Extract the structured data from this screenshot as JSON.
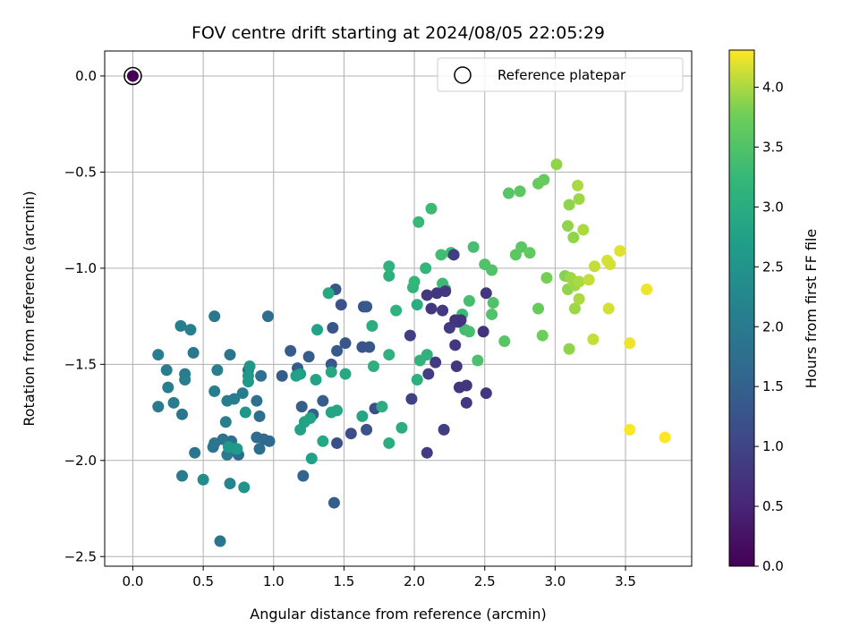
{
  "chart_data": {
    "type": "scatter",
    "title": "FOV centre drift starting at 2024/08/05 22:05:29",
    "xlabel": "Angular distance from reference (arcmin)",
    "ylabel": "Rotation from reference (arcmin)",
    "xlim": [
      -0.2,
      3.97
    ],
    "ylim": [
      -2.55,
      0.13
    ],
    "xticks": [
      0.0,
      0.5,
      1.0,
      1.5,
      2.0,
      2.5,
      3.0,
      3.5
    ],
    "xtick_labels": [
      "0.0",
      "0.5",
      "1.0",
      "1.5",
      "2.0",
      "2.5",
      "3.0",
      "3.5"
    ],
    "yticks": [
      0.0,
      -0.5,
      -1.0,
      -1.5,
      -2.0,
      -2.5
    ],
    "ytick_labels": [
      "0.0",
      "−0.5",
      "−1.0",
      "−1.5",
      "−2.0",
      "−2.5"
    ],
    "grid": true,
    "colormap": "viridis",
    "colorbar": {
      "label": "Hours from first FF file",
      "range": [
        0.0,
        4.31
      ],
      "ticks": [
        0.0,
        0.5,
        1.0,
        1.5,
        2.0,
        2.5,
        3.0,
        3.5,
        4.0
      ],
      "tick_labels": [
        "0.0",
        "0.5",
        "1.0",
        "1.5",
        "2.0",
        "2.5",
        "3.0",
        "3.5",
        "4.0"
      ]
    },
    "legend": {
      "placement": "top-right",
      "entries": [
        {
          "label": "Reference platepar",
          "marker": "open-circle"
        }
      ]
    },
    "reference_point": {
      "x": 0.0,
      "y": 0.0,
      "c": 0.0
    },
    "points": [
      {
        "x": 1.48,
        "y": -1.19,
        "c": 1.25
      },
      {
        "x": 1.42,
        "y": -1.31,
        "c": 1.3
      },
      {
        "x": 1.45,
        "y": -1.43,
        "c": 1.35
      },
      {
        "x": 1.51,
        "y": -1.39,
        "c": 1.3
      },
      {
        "x": 1.64,
        "y": -1.2,
        "c": 1.3
      },
      {
        "x": 1.63,
        "y": -1.41,
        "c": 1.25
      },
      {
        "x": 1.68,
        "y": -1.41,
        "c": 1.3
      },
      {
        "x": 1.66,
        "y": -1.2,
        "c": 1.35
      },
      {
        "x": 1.44,
        "y": -1.11,
        "c": 1.3
      },
      {
        "x": 1.41,
        "y": -1.5,
        "c": 1.35
      },
      {
        "x": 1.12,
        "y": -1.43,
        "c": 1.4
      },
      {
        "x": 1.17,
        "y": -1.52,
        "c": 1.4
      },
      {
        "x": 1.06,
        "y": -1.56,
        "c": 1.4
      },
      {
        "x": 1.28,
        "y": -1.76,
        "c": 1.5
      },
      {
        "x": 1.25,
        "y": -1.46,
        "c": 1.4
      },
      {
        "x": 1.2,
        "y": -1.72,
        "c": 1.45
      },
      {
        "x": 1.35,
        "y": -1.69,
        "c": 1.45
      },
      {
        "x": 1.21,
        "y": -2.08,
        "c": 1.55
      },
      {
        "x": 1.43,
        "y": -2.22,
        "c": 1.45
      },
      {
        "x": 1.45,
        "y": -1.91,
        "c": 1.2
      },
      {
        "x": 1.55,
        "y": -1.86,
        "c": 1.15
      },
      {
        "x": 1.66,
        "y": -1.84,
        "c": 1.25
      },
      {
        "x": 1.72,
        "y": -1.73,
        "c": 1.2
      },
      {
        "x": 0.96,
        "y": -1.25,
        "c": 1.75
      },
      {
        "x": 0.82,
        "y": -1.53,
        "c": 1.75
      },
      {
        "x": 0.91,
        "y": -1.56,
        "c": 1.8
      },
      {
        "x": 0.88,
        "y": -1.69,
        "c": 1.8
      },
      {
        "x": 0.9,
        "y": -1.77,
        "c": 1.75
      },
      {
        "x": 0.93,
        "y": -1.89,
        "c": 1.65
      },
      {
        "x": 0.97,
        "y": -1.9,
        "c": 1.65
      },
      {
        "x": 0.9,
        "y": -1.94,
        "c": 1.75
      },
      {
        "x": 0.88,
        "y": -1.88,
        "c": 1.7
      },
      {
        "x": 0.75,
        "y": -1.97,
        "c": 1.7
      },
      {
        "x": 0.7,
        "y": -1.9,
        "c": 1.8
      },
      {
        "x": 0.64,
        "y": -1.89,
        "c": 1.85
      },
      {
        "x": 0.57,
        "y": -1.93,
        "c": 1.9
      },
      {
        "x": 0.58,
        "y": -1.91,
        "c": 1.9
      },
      {
        "x": 0.67,
        "y": -1.97,
        "c": 2.0
      },
      {
        "x": 0.69,
        "y": -1.45,
        "c": 1.9
      },
      {
        "x": 0.78,
        "y": -1.65,
        "c": 2.0
      },
      {
        "x": 0.67,
        "y": -1.69,
        "c": 2.05
      },
      {
        "x": 0.72,
        "y": -1.68,
        "c": 2.05
      },
      {
        "x": 0.66,
        "y": -1.8,
        "c": 2.1
      },
      {
        "x": 0.58,
        "y": -1.64,
        "c": 2.1
      },
      {
        "x": 0.6,
        "y": -1.53,
        "c": 2.1
      },
      {
        "x": 0.58,
        "y": -1.25,
        "c": 1.95
      },
      {
        "x": 0.34,
        "y": -1.3,
        "c": 2.05
      },
      {
        "x": 0.41,
        "y": -1.32,
        "c": 2.1
      },
      {
        "x": 0.43,
        "y": -1.44,
        "c": 1.95
      },
      {
        "x": 0.18,
        "y": -1.45,
        "c": 2.05
      },
      {
        "x": 0.24,
        "y": -1.53,
        "c": 2.0
      },
      {
        "x": 0.37,
        "y": -1.55,
        "c": 2.0
      },
      {
        "x": 0.37,
        "y": -1.58,
        "c": 2.05
      },
      {
        "x": 0.25,
        "y": -1.62,
        "c": 2.05
      },
      {
        "x": 0.29,
        "y": -1.7,
        "c": 2.05
      },
      {
        "x": 0.18,
        "y": -1.72,
        "c": 2.0
      },
      {
        "x": 0.35,
        "y": -1.76,
        "c": 1.95
      },
      {
        "x": 0.44,
        "y": -1.96,
        "c": 1.9
      },
      {
        "x": 0.35,
        "y": -2.08,
        "c": 2.0
      },
      {
        "x": 0.5,
        "y": -2.1,
        "c": 2.35
      },
      {
        "x": 0.69,
        "y": -2.12,
        "c": 2.2
      },
      {
        "x": 0.79,
        "y": -2.14,
        "c": 2.5
      },
      {
        "x": 0.62,
        "y": -2.42,
        "c": 1.9
      },
      {
        "x": 0.8,
        "y": -1.75,
        "c": 2.55
      },
      {
        "x": 0.82,
        "y": -1.56,
        "c": 2.55
      },
      {
        "x": 0.82,
        "y": -1.59,
        "c": 2.6
      },
      {
        "x": 0.83,
        "y": -1.51,
        "c": 2.55
      },
      {
        "x": 0.68,
        "y": -1.93,
        "c": 2.6
      },
      {
        "x": 0.74,
        "y": -1.94,
        "c": 2.6
      },
      {
        "x": 1.19,
        "y": -1.55,
        "c": 2.7
      },
      {
        "x": 1.16,
        "y": -1.56,
        "c": 2.75
      },
      {
        "x": 1.19,
        "y": -1.84,
        "c": 2.8
      },
      {
        "x": 1.22,
        "y": -1.8,
        "c": 2.8
      },
      {
        "x": 1.26,
        "y": -1.78,
        "c": 2.8
      },
      {
        "x": 1.27,
        "y": -1.99,
        "c": 2.75
      },
      {
        "x": 1.35,
        "y": -1.9,
        "c": 2.9
      },
      {
        "x": 1.41,
        "y": -1.75,
        "c": 2.85
      },
      {
        "x": 1.45,
        "y": -1.74,
        "c": 2.85
      },
      {
        "x": 1.3,
        "y": -1.58,
        "c": 2.8
      },
      {
        "x": 1.31,
        "y": -1.32,
        "c": 2.8
      },
      {
        "x": 1.39,
        "y": -1.13,
        "c": 2.9
      },
      {
        "x": 1.41,
        "y": -1.54,
        "c": 2.9
      },
      {
        "x": 1.51,
        "y": -1.55,
        "c": 2.9
      },
      {
        "x": 1.63,
        "y": -1.77,
        "c": 2.85
      },
      {
        "x": 1.77,
        "y": -1.72,
        "c": 3.0
      },
      {
        "x": 1.82,
        "y": -1.91,
        "c": 3.0
      },
      {
        "x": 1.91,
        "y": -1.83,
        "c": 3.0
      },
      {
        "x": 1.71,
        "y": -1.51,
        "c": 3.05
      },
      {
        "x": 1.7,
        "y": -1.3,
        "c": 3.0
      },
      {
        "x": 1.82,
        "y": -1.45,
        "c": 3.1
      },
      {
        "x": 1.87,
        "y": -1.22,
        "c": 3.1
      },
      {
        "x": 1.82,
        "y": -1.04,
        "c": 3.05
      },
      {
        "x": 1.82,
        "y": -0.99,
        "c": 3.1
      },
      {
        "x": 2.02,
        "y": -1.58,
        "c": 3.05
      },
      {
        "x": 2.04,
        "y": -1.48,
        "c": 3.15
      },
      {
        "x": 2.09,
        "y": -1.45,
        "c": 3.1
      },
      {
        "x": 2.02,
        "y": -1.19,
        "c": 3.0
      },
      {
        "x": 1.99,
        "y": -1.1,
        "c": 3.15
      },
      {
        "x": 2.0,
        "y": -1.07,
        "c": 3.2
      },
      {
        "x": 2.08,
        "y": -1.0,
        "c": 3.2
      },
      {
        "x": 2.03,
        "y": -0.76,
        "c": 3.25
      },
      {
        "x": 2.12,
        "y": -0.69,
        "c": 3.3
      },
      {
        "x": 2.19,
        "y": -0.93,
        "c": 3.35
      },
      {
        "x": 2.26,
        "y": -0.92,
        "c": 3.35
      },
      {
        "x": 2.2,
        "y": -1.08,
        "c": 3.3
      },
      {
        "x": 2.22,
        "y": -1.11,
        "c": 3.3
      },
      {
        "x": 2.34,
        "y": -1.24,
        "c": 3.3
      },
      {
        "x": 2.36,
        "y": -1.32,
        "c": 3.35
      },
      {
        "x": 2.39,
        "y": -1.33,
        "c": 3.4
      },
      {
        "x": 2.39,
        "y": -1.17,
        "c": 3.4
      },
      {
        "x": 2.42,
        "y": -0.89,
        "c": 3.4
      },
      {
        "x": 2.5,
        "y": -0.98,
        "c": 3.5
      },
      {
        "x": 2.55,
        "y": -1.01,
        "c": 3.5
      },
      {
        "x": 2.56,
        "y": -1.18,
        "c": 3.5
      },
      {
        "x": 2.55,
        "y": -1.24,
        "c": 3.5
      },
      {
        "x": 2.45,
        "y": -1.48,
        "c": 3.45
      },
      {
        "x": 2.64,
        "y": -1.38,
        "c": 3.55
      },
      {
        "x": 2.67,
        "y": -0.61,
        "c": 3.55
      },
      {
        "x": 2.75,
        "y": -0.6,
        "c": 3.6
      },
      {
        "x": 2.72,
        "y": -0.93,
        "c": 3.6
      },
      {
        "x": 2.76,
        "y": -0.89,
        "c": 3.6
      },
      {
        "x": 2.82,
        "y": -0.92,
        "c": 3.65
      },
      {
        "x": 2.88,
        "y": -0.56,
        "c": 3.7
      },
      {
        "x": 2.92,
        "y": -0.54,
        "c": 3.7
      },
      {
        "x": 2.88,
        "y": -1.21,
        "c": 3.7
      },
      {
        "x": 2.91,
        "y": -1.35,
        "c": 3.75
      },
      {
        "x": 2.94,
        "y": -1.05,
        "c": 3.8
      },
      {
        "x": 3.01,
        "y": -0.46,
        "c": 3.9
      },
      {
        "x": 3.1,
        "y": -0.67,
        "c": 3.9
      },
      {
        "x": 3.17,
        "y": -0.64,
        "c": 3.95
      },
      {
        "x": 3.16,
        "y": -0.57,
        "c": 4.0
      },
      {
        "x": 3.09,
        "y": -0.78,
        "c": 3.9
      },
      {
        "x": 3.13,
        "y": -0.84,
        "c": 3.9
      },
      {
        "x": 3.2,
        "y": -0.8,
        "c": 4.0
      },
      {
        "x": 3.07,
        "y": -1.04,
        "c": 3.85
      },
      {
        "x": 3.11,
        "y": -1.05,
        "c": 3.95
      },
      {
        "x": 3.09,
        "y": -1.11,
        "c": 3.9
      },
      {
        "x": 3.14,
        "y": -1.09,
        "c": 3.95
      },
      {
        "x": 3.17,
        "y": -1.07,
        "c": 4.0
      },
      {
        "x": 3.17,
        "y": -1.16,
        "c": 4.0
      },
      {
        "x": 3.14,
        "y": -1.21,
        "c": 3.95
      },
      {
        "x": 3.1,
        "y": -1.42,
        "c": 3.9
      },
      {
        "x": 3.24,
        "y": -1.06,
        "c": 4.1
      },
      {
        "x": 3.28,
        "y": -0.99,
        "c": 4.1
      },
      {
        "x": 3.27,
        "y": -1.37,
        "c": 4.1
      },
      {
        "x": 3.37,
        "y": -0.96,
        "c": 4.15
      },
      {
        "x": 3.39,
        "y": -0.98,
        "c": 4.15
      },
      {
        "x": 3.46,
        "y": -0.91,
        "c": 4.2
      },
      {
        "x": 3.38,
        "y": -1.21,
        "c": 4.15
      },
      {
        "x": 3.53,
        "y": -1.39,
        "c": 4.25
      },
      {
        "x": 3.65,
        "y": -1.11,
        "c": 4.25
      },
      {
        "x": 3.53,
        "y": -1.84,
        "c": 4.3
      },
      {
        "x": 3.78,
        "y": -1.88,
        "c": 4.31
      },
      {
        "x": 2.09,
        "y": -1.14,
        "c": 0.8
      },
      {
        "x": 2.12,
        "y": -1.21,
        "c": 0.8
      },
      {
        "x": 2.16,
        "y": -1.13,
        "c": 0.75
      },
      {
        "x": 2.22,
        "y": -1.12,
        "c": 0.8
      },
      {
        "x": 2.2,
        "y": -1.22,
        "c": 0.85
      },
      {
        "x": 2.25,
        "y": -1.31,
        "c": 0.85
      },
      {
        "x": 2.29,
        "y": -1.27,
        "c": 0.7
      },
      {
        "x": 2.31,
        "y": -1.28,
        "c": 0.75
      },
      {
        "x": 2.33,
        "y": -1.27,
        "c": 0.7
      },
      {
        "x": 2.28,
        "y": -0.93,
        "c": 0.9
      },
      {
        "x": 2.29,
        "y": -1.4,
        "c": 0.8
      },
      {
        "x": 2.49,
        "y": -1.33,
        "c": 0.7
      },
      {
        "x": 2.51,
        "y": -1.13,
        "c": 0.75
      },
      {
        "x": 2.3,
        "y": -1.51,
        "c": 0.8
      },
      {
        "x": 2.37,
        "y": -1.61,
        "c": 0.75
      },
      {
        "x": 2.32,
        "y": -1.62,
        "c": 0.75
      },
      {
        "x": 2.37,
        "y": -1.7,
        "c": 0.8
      },
      {
        "x": 2.51,
        "y": -1.65,
        "c": 0.75
      },
      {
        "x": 2.15,
        "y": -1.49,
        "c": 0.85
      },
      {
        "x": 2.1,
        "y": -1.55,
        "c": 0.9
      },
      {
        "x": 1.97,
        "y": -1.35,
        "c": 0.9
      },
      {
        "x": 1.98,
        "y": -1.68,
        "c": 0.95
      },
      {
        "x": 2.21,
        "y": -1.84,
        "c": 0.9
      },
      {
        "x": 2.09,
        "y": -1.96,
        "c": 0.85
      }
    ]
  }
}
